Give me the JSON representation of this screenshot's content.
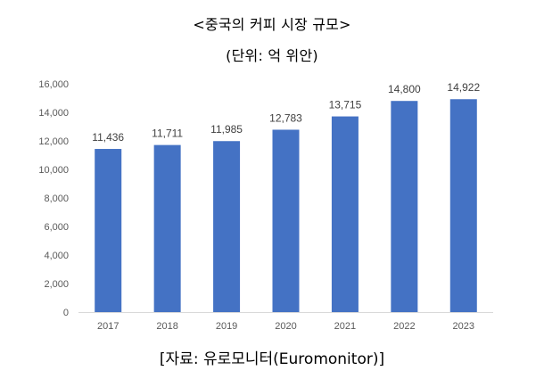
{
  "chart_data": {
    "type": "bar",
    "title": "<중국의 커피 시장 규모>",
    "subtitle": "(단위: 억 위안)",
    "xlabel": "",
    "ylabel": "",
    "categories": [
      "2017",
      "2018",
      "2019",
      "2020",
      "2021",
      "2022",
      "2023"
    ],
    "values": [
      11436,
      11711,
      11985,
      12783,
      13715,
      14800,
      14922
    ],
    "data_labels": [
      "11,436",
      "11,711",
      "11,985",
      "12,783",
      "13,715",
      "14,800",
      "14,922"
    ],
    "ylim": [
      0,
      16000
    ],
    "yticks": [
      "0",
      "2,000",
      "4,000",
      "6,000",
      "8,000",
      "10,000",
      "12,000",
      "14,000",
      "16,000"
    ],
    "grid": false,
    "legend": "none",
    "bar_color": "#4472C4",
    "source": "[자료: 유로모니터(Euromonitor)]"
  }
}
